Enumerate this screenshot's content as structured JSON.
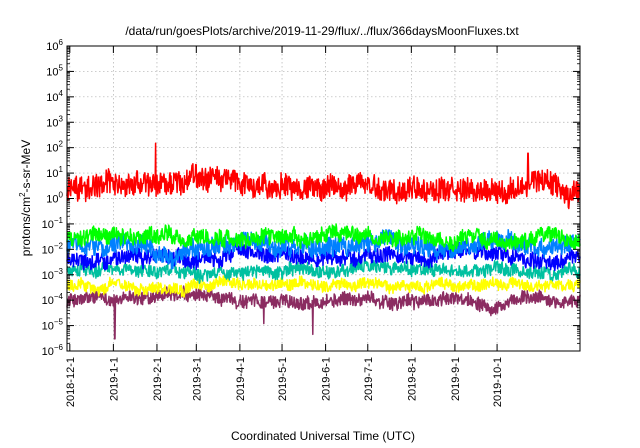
{
  "chart_data": {
    "type": "line",
    "title": "/data/run/goesPlots/archive/2019-11-29/flux/../flux/366daysMoonFluxes.txt",
    "xlabel": "Coordinated Universal Time (UTC)",
    "ylabel_main": "protons/cm",
    "ylabel_sup": "2",
    "ylabel_rest": "-s-sr-MeV",
    "yscale": "log",
    "ylim_exp": [
      -6,
      6
    ],
    "y_tick_exponents": [
      -6,
      -5,
      -4,
      -3,
      -2,
      -1,
      0,
      1,
      2,
      3,
      4,
      5,
      6
    ],
    "x_tick_labels": [
      "2018-12-1",
      "2019-1-1",
      "2019-2-1",
      "2019-3-1",
      "2019-4-1",
      "2019-5-1",
      "2019-6-1",
      "2019-7-1",
      "2019-8-1",
      "2019-9-1",
      "2019-10-1"
    ],
    "x_start_date": "2018-11-29",
    "x_end_date": "2019-11-29",
    "grid": true,
    "series": [
      {
        "color": "#8b2c61",
        "median": 0.0001,
        "spread_dec": 0.25,
        "spikes": [
          {
            "date": "2019-01-02",
            "value": 3e-06
          },
          {
            "date": "2019-04-18",
            "value": 1.2e-05
          },
          {
            "date": "2019-05-23",
            "value": 4.5e-06
          }
        ]
      },
      {
        "color": "#ffff00",
        "median": 0.0004,
        "spread_dec": 0.22,
        "spikes": []
      },
      {
        "color": "#00c0a0",
        "median": 0.0015,
        "spread_dec": 0.25,
        "spikes": []
      },
      {
        "color": "#0000ff",
        "median": 0.005,
        "spread_dec": 0.3,
        "spikes": []
      },
      {
        "color": "#0080ff",
        "median": 0.012,
        "spread_dec": 0.35,
        "spikes": []
      },
      {
        "color": "#00ff00",
        "median": 0.035,
        "spread_dec": 0.3,
        "spikes": []
      },
      {
        "color": "#ff0000",
        "median": 3,
        "spread_dec": 0.45,
        "spikes": [
          {
            "date": "2019-01-31",
            "value": 150
          },
          {
            "date": "2019-10-23",
            "value": 60
          }
        ]
      }
    ]
  }
}
